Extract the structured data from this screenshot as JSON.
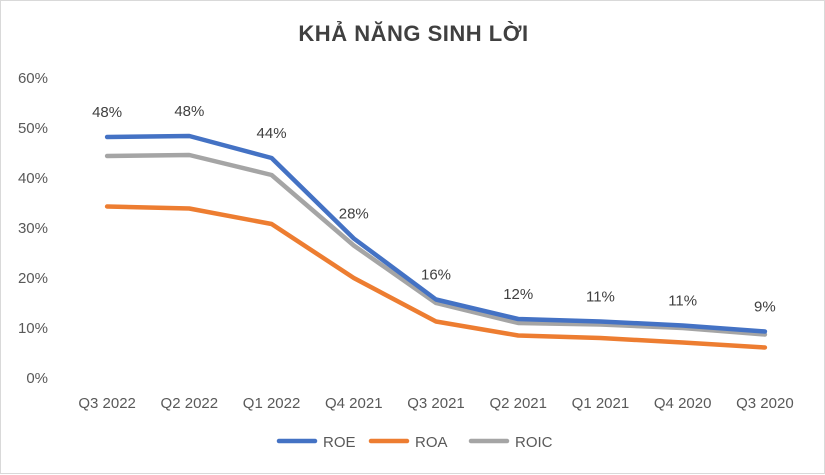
{
  "chart_data": {
    "type": "line",
    "title": "KHẢ NĂNG SINH LỜI",
    "xlabel": "",
    "ylabel": "",
    "categories": [
      "Q3 2022",
      "Q2 2022",
      "Q1 2022",
      "Q4 2021",
      "Q3 2021",
      "Q2 2021",
      "Q1 2021",
      "Q4 2020",
      "Q3 2020"
    ],
    "ylim": [
      0,
      0.6
    ],
    "y_ticks": [
      0,
      0.1,
      0.2,
      0.3,
      0.4,
      0.5,
      0.6
    ],
    "y_tick_labels": [
      "0%",
      "10%",
      "20%",
      "30%",
      "40%",
      "50%",
      "60%"
    ],
    "grid": false,
    "legend_position": "bottom",
    "series": [
      {
        "name": "ROE",
        "color": "#4472C4",
        "values": [
          0.482,
          0.484,
          0.44,
          0.279,
          0.157,
          0.118,
          0.113,
          0.105,
          0.093
        ],
        "data_labels": [
          "48%",
          "48%",
          "44%",
          "28%",
          "16%",
          "12%",
          "11%",
          "11%",
          "9%"
        ]
      },
      {
        "name": "ROA",
        "color": "#ED7D31",
        "values": [
          0.343,
          0.339,
          0.308,
          0.2,
          0.113,
          0.085,
          0.08,
          0.071,
          0.061
        ]
      },
      {
        "name": "ROIC",
        "color": "#A5A5A5",
        "values": [
          0.444,
          0.446,
          0.406,
          0.265,
          0.15,
          0.11,
          0.107,
          0.1,
          0.087
        ]
      }
    ]
  }
}
